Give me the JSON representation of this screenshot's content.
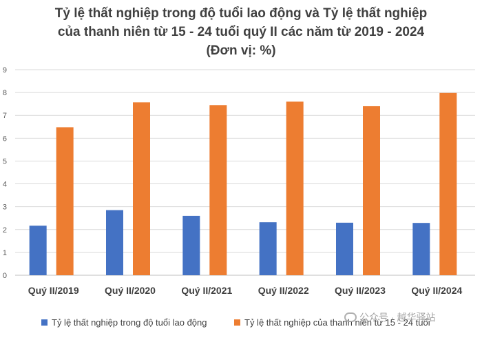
{
  "chart_data": {
    "type": "bar",
    "title_lines": [
      "Tỷ lệ thất nghiệp trong độ tuổi lao động và Tỷ lệ thất nghiệp",
      "của thanh niên từ 15 - 24 tuổi quý II các năm từ 2019 - 2024",
      "(Đơn vị: %)"
    ],
    "categories": [
      "Quý II/2019",
      "Quý II/2020",
      "Quý II/2021",
      "Quý II/2022",
      "Quý II/2023",
      "Quý II/2024"
    ],
    "series": [
      {
        "name": "Tỷ lệ thất nghiệp trong độ tuổi lao động",
        "color": "#4472C4",
        "values": [
          2.17,
          2.85,
          2.6,
          2.32,
          2.3,
          2.29
        ]
      },
      {
        "name": "Tỷ lệ thất nghiệp của thanh niên từ 15 - 24 tuổi",
        "color": "#ED7D31",
        "values": [
          6.48,
          7.57,
          7.45,
          7.6,
          7.4,
          7.98
        ]
      }
    ],
    "yticks": [
      "0",
      "1",
      "2",
      "3",
      "4",
      "5",
      "6",
      "7",
      "8",
      "9"
    ],
    "ylim": [
      0,
      9
    ],
    "grid": true,
    "legend_position": "bottom"
  },
  "watermark": {
    "text": "公众号 · 越华驿站",
    "icon": "wechat-icon"
  }
}
